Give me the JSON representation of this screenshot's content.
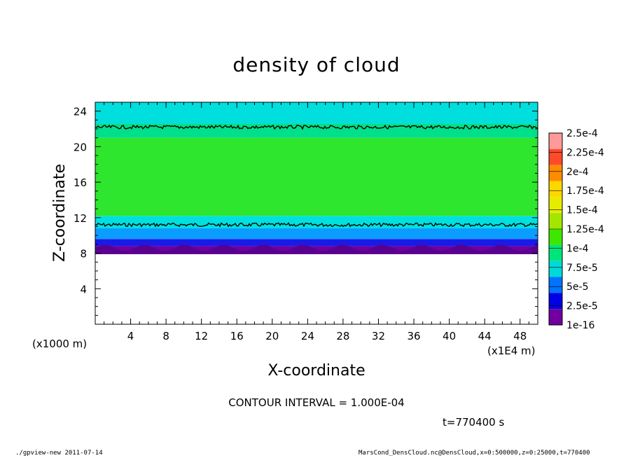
{
  "chart_data": {
    "type": "heatmap",
    "title": "density of cloud",
    "xlabel": "X-coordinate",
    "ylabel": "Z-coordinate",
    "x_unit_left": "(x1000 m)",
    "x_unit_right": "(x1E4 m)",
    "xlim": [
      0,
      50
    ],
    "ylim": [
      0,
      25
    ],
    "x_ticks": [
      4,
      8,
      12,
      16,
      20,
      24,
      28,
      32,
      36,
      40,
      44,
      48
    ],
    "y_ticks": [
      4,
      8,
      12,
      16,
      20,
      24
    ],
    "colorbar_levels": [
      "2.5e-4",
      "2.25e-4",
      "2e-4",
      "1.75e-4",
      "1.5e-4",
      "1.25e-4",
      "1e-4",
      "7.5e-5",
      "5e-5",
      "2.5e-5",
      "1e-16"
    ],
    "colorbar_colors": [
      "#ff9a9a",
      "#ff4a2a",
      "#ff8c00",
      "#ffd700",
      "#e6ec00",
      "#a3e600",
      "#3ee600",
      "#00e57a",
      "#00d9d9",
      "#0073ff",
      "#0000e6",
      "#7000a0"
    ],
    "field_layers": [
      {
        "z_from": 7.9,
        "z_to": 8.8,
        "color": "#7000a0"
      },
      {
        "z_from": 8.8,
        "z_to": 9.6,
        "color": "#1a1ae6"
      },
      {
        "z_from": 9.6,
        "z_to": 10.8,
        "color": "#0a9cff"
      },
      {
        "z_from": 10.8,
        "z_to": 12.2,
        "color": "#00e0e0"
      },
      {
        "z_from": 12.2,
        "z_to": 21.0,
        "color": "#2ee62e"
      },
      {
        "z_from": 21.0,
        "z_to": 22.6,
        "color": "#00e08a"
      },
      {
        "z_from": 22.6,
        "z_to": 25.0,
        "color": "#00dede"
      }
    ],
    "contour_levels_z": [
      11.2,
      22.2
    ],
    "grid": false,
    "legend": "right colorbar"
  },
  "contour_interval": "CONTOUR INTERVAL = 1.000E-04",
  "time_label": "t=770400 s",
  "footer_left": "./gpview-new  2011-07-14",
  "footer_right": "MarsCond_DensCloud.nc@DensCloud,x=0:500000,z=0:25000,t=770400"
}
